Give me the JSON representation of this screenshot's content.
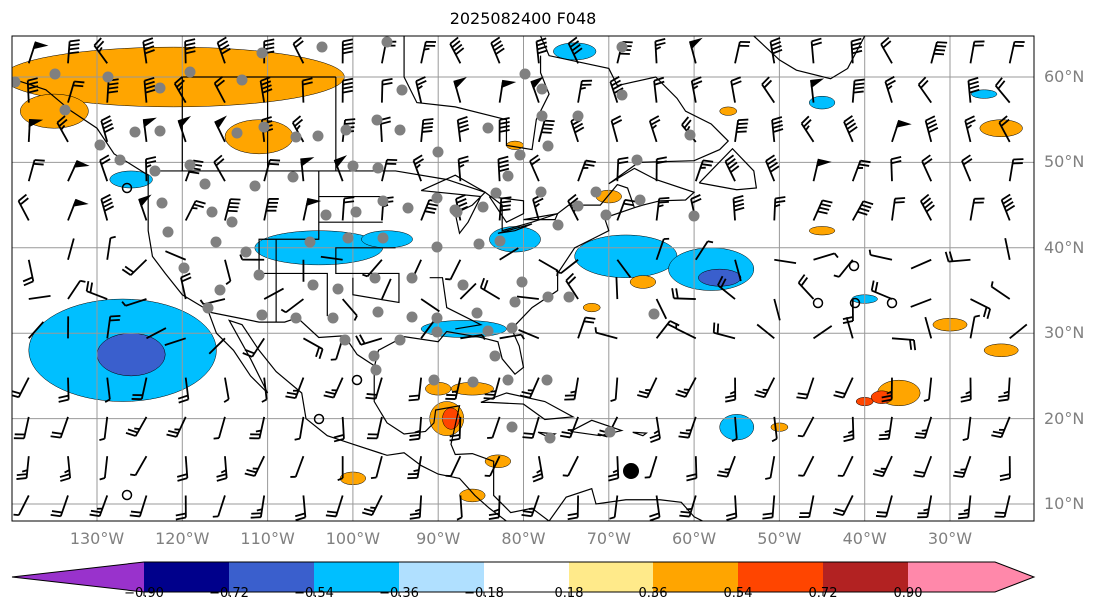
{
  "title": "2025082400 F048",
  "lat_labels": [
    "60°N",
    "50°N",
    "40°N",
    "30°N",
    "20°N",
    "10°N"
  ],
  "lon_labels": [
    "130°W",
    "120°W",
    "110°W",
    "100°W",
    "90°W",
    "80°W",
    "70°W",
    "60°W",
    "50°W",
    "40°W",
    "30°W"
  ],
  "colorbar": {
    "ticks": [
      "−0.90",
      "−0.72",
      "−0.54",
      "−0.36",
      "−0.18",
      "0.18",
      "0.36",
      "0.54",
      "0.72",
      "0.90"
    ],
    "colors": [
      "#9932cc",
      "#00008b",
      "#3a5fcd",
      "#00bfff",
      "#b0e0ff",
      "#ffffff",
      "#ffea8a",
      "#ffa500",
      "#ff4500",
      "#b22222",
      "#ff88aa"
    ]
  }
}
